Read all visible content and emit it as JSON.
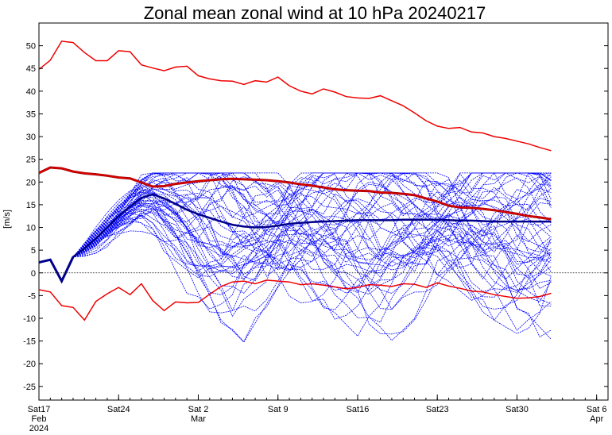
{
  "chart_data": {
    "type": "line",
    "title": "Zonal mean zonal wind at 10 hPa 20240217",
    "ylabel": "[m/s]",
    "xlabel": "",
    "ylim": [
      -28,
      55
    ],
    "xlim": [
      "2024-02-17",
      "2024-04-07"
    ],
    "yticks": [
      -25,
      -20,
      -15,
      -10,
      -5,
      0,
      5,
      10,
      15,
      20,
      25,
      30,
      35,
      40,
      45,
      50
    ],
    "xticks": [
      {
        "date": "2024-02-17",
        "label": [
          "Sat17",
          "Feb",
          "2024"
        ]
      },
      {
        "date": "2024-02-24",
        "label": [
          "Sat24"
        ]
      },
      {
        "date": "2024-03-02",
        "label": [
          "Sat 2",
          "Mar"
        ]
      },
      {
        "date": "2024-03-09",
        "label": [
          "Sat 9"
        ]
      },
      {
        "date": "2024-03-16",
        "label": [
          "Sat16"
        ]
      },
      {
        "date": "2024-03-23",
        "label": [
          "Sat23"
        ]
      },
      {
        "date": "2024-03-30",
        "label": [
          "Sat30"
        ]
      },
      {
        "date": "2024-04-06",
        "label": [
          "Sat 6",
          "Apr"
        ]
      }
    ],
    "grid": false,
    "zero_line": true,
    "colors": {
      "ensemble": "#0000ff",
      "ensemble_mean": "#00008b",
      "climatology": "#ee0000",
      "climatology_mean": "#aa0000",
      "zero_line": "#000000"
    },
    "dates": [
      "2024-02-17",
      "2024-02-18",
      "2024-02-19",
      "2024-02-20",
      "2024-02-21",
      "2024-02-22",
      "2024-02-23",
      "2024-02-24",
      "2024-02-25",
      "2024-02-26",
      "2024-02-27",
      "2024-02-28",
      "2024-02-29",
      "2024-03-01",
      "2024-03-02",
      "2024-03-03",
      "2024-03-04",
      "2024-03-05",
      "2024-03-06",
      "2024-03-07",
      "2024-03-08",
      "2024-03-09",
      "2024-03-10",
      "2024-03-11",
      "2024-03-12",
      "2024-03-13",
      "2024-03-14",
      "2024-03-15",
      "2024-03-16",
      "2024-03-17",
      "2024-03-18",
      "2024-03-19",
      "2024-03-20",
      "2024-03-21",
      "2024-03-22",
      "2024-03-23",
      "2024-03-24",
      "2024-03-25",
      "2024-03-26",
      "2024-03-27",
      "2024-03-28",
      "2024-03-29",
      "2024-03-30",
      "2024-03-31",
      "2024-04-01",
      "2024-04-02"
    ],
    "analysis": [
      2.3,
      2.9,
      -1.8,
      3.5
    ],
    "series": [
      {
        "role": "climatology_max",
        "values": [
          44.8,
          46.8,
          51.0,
          50.7,
          48.5,
          46.7,
          46.7,
          48.9,
          48.7,
          45.8,
          45.1,
          44.5,
          45.3,
          45.5,
          43.4,
          42.7,
          42.3,
          42.2,
          41.5,
          42.3,
          42.0,
          43.1,
          41.2,
          40.0,
          39.4,
          40.5,
          39.8,
          38.8,
          38.5,
          38.4,
          39.0,
          37.9,
          36.8,
          35.2,
          33.5,
          32.3,
          31.8,
          32.0,
          31.0,
          30.8,
          30.0,
          29.6,
          29.0,
          28.4,
          27.6,
          26.9
        ]
      },
      {
        "role": "climatology_mean",
        "values": [
          22.0,
          23.2,
          23.0,
          22.3,
          21.9,
          21.7,
          21.4,
          21.0,
          20.8,
          19.9,
          19.0,
          19.1,
          19.6,
          19.9,
          20.2,
          20.4,
          20.6,
          20.7,
          20.6,
          20.5,
          20.4,
          20.2,
          19.9,
          19.5,
          19.2,
          18.8,
          18.4,
          18.2,
          18.1,
          18.0,
          17.7,
          17.6,
          17.4,
          17.1,
          16.4,
          15.7,
          14.8,
          14.4,
          14.3,
          14.1,
          13.8,
          13.4,
          13.0,
          12.5,
          12.2,
          11.8
        ]
      },
      {
        "role": "climatology_min",
        "values": [
          -3.7,
          -4.2,
          -7.2,
          -7.6,
          -10.4,
          -6.3,
          -4.6,
          -3.2,
          -4.8,
          -2.4,
          -6.1,
          -8.3,
          -6.4,
          -6.6,
          -6.5,
          -4.7,
          -3.0,
          -2.0,
          -1.8,
          -2.4,
          -1.6,
          -1.8,
          -2.0,
          -2.6,
          -2.4,
          -2.7,
          -3.1,
          -3.5,
          -3.2,
          -2.6,
          -2.7,
          -3.0,
          -2.4,
          -2.5,
          -3.2,
          -2.2,
          -2.9,
          -3.4,
          -4.0,
          -4.2,
          -4.8,
          -5.2,
          -5.6,
          -5.5,
          -5.2,
          -4.5
        ]
      },
      {
        "role": "ensemble_mean",
        "values": [
          2.3,
          2.9,
          -1.8,
          3.5,
          5.4,
          7.6,
          10.0,
          12.5,
          14.6,
          16.5,
          17.3,
          16.4,
          15.2,
          13.9,
          12.9,
          12.1,
          11.3,
          10.6,
          10.2,
          10.0,
          10.1,
          10.4,
          10.8,
          11.0,
          11.2,
          11.3,
          11.4,
          11.5,
          11.6,
          11.6,
          11.6,
          11.6,
          11.7,
          11.7,
          11.7,
          11.7,
          11.6,
          11.5,
          11.5,
          11.4,
          11.3,
          11.3,
          11.3,
          11.3,
          11.3,
          11.3
        ]
      }
    ]
  }
}
